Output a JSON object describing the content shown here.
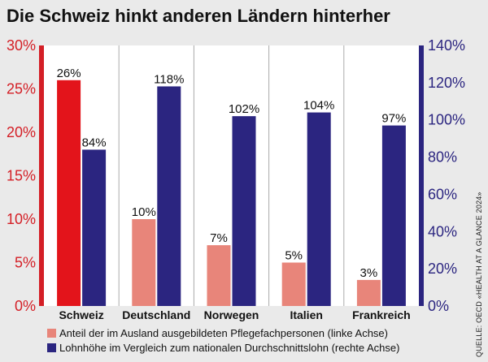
{
  "chart_data": {
    "type": "bar",
    "title": "Die Schweiz hinkt anderen Ländern hinterher",
    "categories": [
      "Schweiz",
      "Deutschland",
      "Norwegen",
      "Italien",
      "Frankreich"
    ],
    "series": [
      {
        "name": "Anteil der im Ausland ausgebildeten Pflegefachpersonen (linke Achse)",
        "axis": "left",
        "values": [
          26,
          10,
          7,
          5,
          3
        ],
        "labels": [
          "26%",
          "10%",
          "7%",
          "5%",
          "3%"
        ],
        "color": "#e8857a",
        "highlight_color": "#e3141b"
      },
      {
        "name": "Lohnhöhe im Vergleich zum nationalen Durchschnittslohn (rechte Achse)",
        "axis": "right",
        "values": [
          84,
          118,
          102,
          104,
          97
        ],
        "labels": [
          "84%",
          "118%",
          "102%",
          "104%",
          "97%"
        ],
        "color": "#2b2580"
      }
    ],
    "y_left": {
      "range": [
        0,
        30
      ],
      "ticks": [
        "0%",
        "5%",
        "10%",
        "15%",
        "20%",
        "25%",
        "30%"
      ],
      "color": "#d41f26"
    },
    "y_right": {
      "range": [
        0,
        140
      ],
      "ticks": [
        "0%",
        "20%",
        "40%",
        "60%",
        "80%",
        "100%",
        "120%",
        "140%"
      ],
      "color": "#2b2580"
    },
    "grid": "vertical"
  },
  "source": "QUELLE: OECD «HEALTH AT A GLANCE 2024»"
}
